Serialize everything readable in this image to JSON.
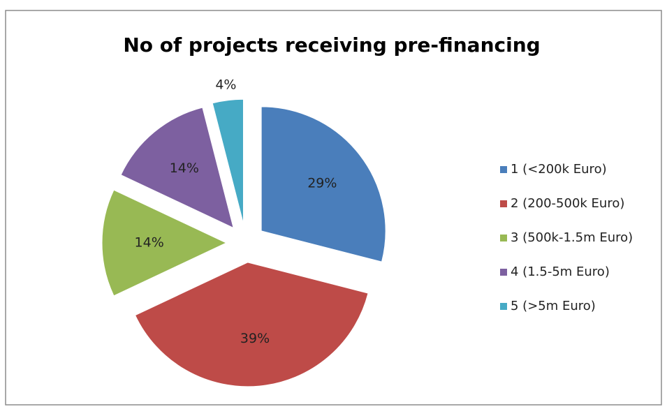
{
  "chart_data": {
    "type": "pie",
    "title": "No of projects receiving pre-financing",
    "categories": [
      "1 (<200k Euro)",
      "2 (200-500k Euro)",
      "3 (500k-1.5m Euro)",
      "4 (1.5-5m Euro)",
      "5 (>5m Euro)"
    ],
    "values": [
      29,
      39,
      14,
      14,
      4
    ],
    "value_labels": [
      "29%",
      "39%",
      "14%",
      "14%",
      "4%"
    ],
    "colors": [
      "#4a7ebb",
      "#be4b48",
      "#98b954",
      "#7d60a0",
      "#46aac5"
    ],
    "legend": "right"
  }
}
